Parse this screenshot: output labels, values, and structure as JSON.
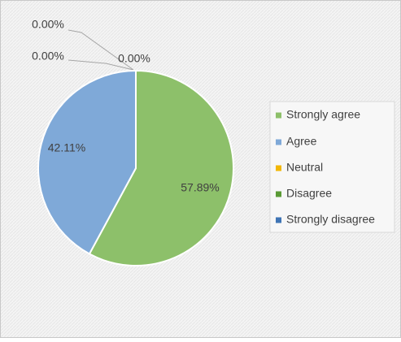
{
  "chart_data": {
    "type": "pie",
    "categories": [
      "Strongly agree",
      "Agree",
      "Neutral",
      "Disagree",
      "Strongly disagree"
    ],
    "values": [
      57.89,
      42.11,
      0,
      0,
      0
    ],
    "value_labels": [
      "57.89%",
      "42.11%",
      "0.00%",
      "0.00%",
      "0.00%"
    ],
    "colors": [
      "#8dc06a",
      "#7fa9d8",
      "#f2b705",
      "#5a9a35",
      "#3f74b5"
    ],
    "legend": "right"
  }
}
